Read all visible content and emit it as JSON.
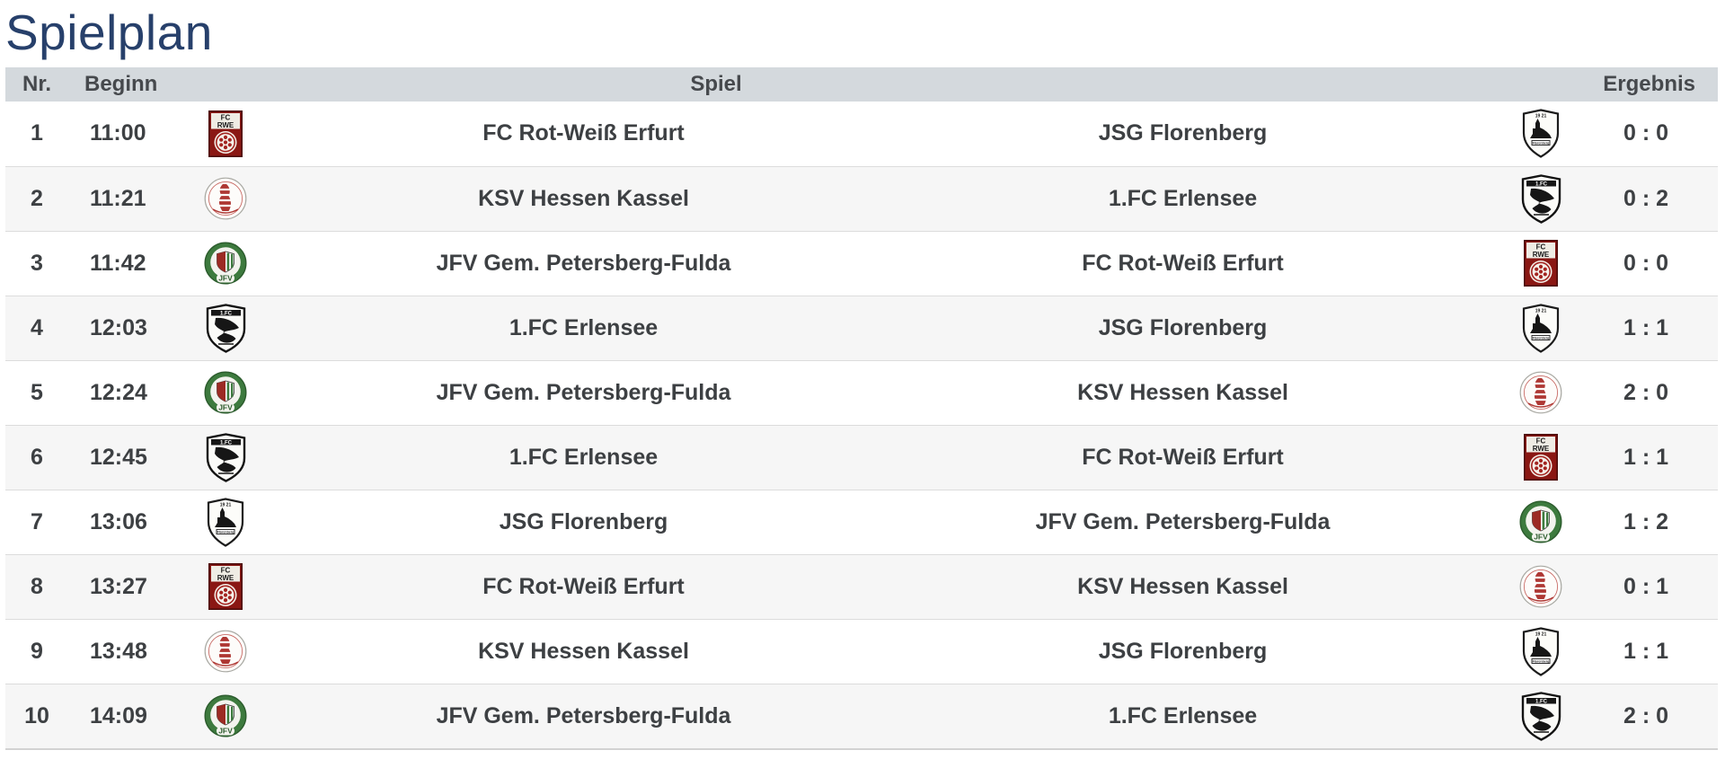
{
  "title": "Spielplan",
  "table": {
    "headers": {
      "nr": "Nr.",
      "beginn": "Beginn",
      "spiel": "Spiel",
      "ergebnis": "Ergebnis"
    },
    "matches": [
      {
        "nr": "1",
        "time": "11:00",
        "home": "FC Rot-Weiß Erfurt",
        "home_logo": "fc-rot-weiss-erfurt",
        "away": "JSG Florenberg",
        "away_logo": "jsg-florenberg",
        "score": "0 : 0"
      },
      {
        "nr": "2",
        "time": "11:21",
        "home": "KSV Hessen Kassel",
        "home_logo": "ksv-hessen-kassel",
        "away": "1.FC Erlensee",
        "away_logo": "fc-erlensee",
        "score": "0 : 2"
      },
      {
        "nr": "3",
        "time": "11:42",
        "home": "JFV Gem. Petersberg-Fulda",
        "home_logo": "jfv-petersberg-fulda",
        "away": "FC Rot-Weiß Erfurt",
        "away_logo": "fc-rot-weiss-erfurt",
        "score": "0 : 0"
      },
      {
        "nr": "4",
        "time": "12:03",
        "home": "1.FC Erlensee",
        "home_logo": "fc-erlensee",
        "away": "JSG Florenberg",
        "away_logo": "jsg-florenberg",
        "score": "1 : 1"
      },
      {
        "nr": "5",
        "time": "12:24",
        "home": "JFV Gem. Petersberg-Fulda",
        "home_logo": "jfv-petersberg-fulda",
        "away": "KSV Hessen Kassel",
        "away_logo": "ksv-hessen-kassel",
        "score": "2 : 0"
      },
      {
        "nr": "6",
        "time": "12:45",
        "home": "1.FC Erlensee",
        "home_logo": "fc-erlensee",
        "away": "FC Rot-Weiß Erfurt",
        "away_logo": "fc-rot-weiss-erfurt",
        "score": "1 : 1"
      },
      {
        "nr": "7",
        "time": "13:06",
        "home": "JSG Florenberg",
        "home_logo": "jsg-florenberg",
        "away": "JFV Gem. Petersberg-Fulda",
        "away_logo": "jfv-petersberg-fulda",
        "score": "1 : 2"
      },
      {
        "nr": "8",
        "time": "13:27",
        "home": "FC Rot-Weiß Erfurt",
        "home_logo": "fc-rot-weiss-erfurt",
        "away": "KSV Hessen Kassel",
        "away_logo": "ksv-hessen-kassel",
        "score": "0 : 1"
      },
      {
        "nr": "9",
        "time": "13:48",
        "home": "KSV Hessen Kassel",
        "home_logo": "ksv-hessen-kassel",
        "away": "JSG Florenberg",
        "away_logo": "jsg-florenberg",
        "score": "1 : 1"
      },
      {
        "nr": "10",
        "time": "14:09",
        "home": "JFV Gem. Petersberg-Fulda",
        "home_logo": "jfv-petersberg-fulda",
        "away": "1.FC Erlensee",
        "away_logo": "fc-erlensee",
        "score": "2 : 0"
      }
    ]
  },
  "colors": {
    "title": "#27406b",
    "header_bg": "#d4d9dd",
    "row_alt_bg": "#f6f6f6",
    "text": "#3d4043",
    "border": "#dcdcdc"
  }
}
